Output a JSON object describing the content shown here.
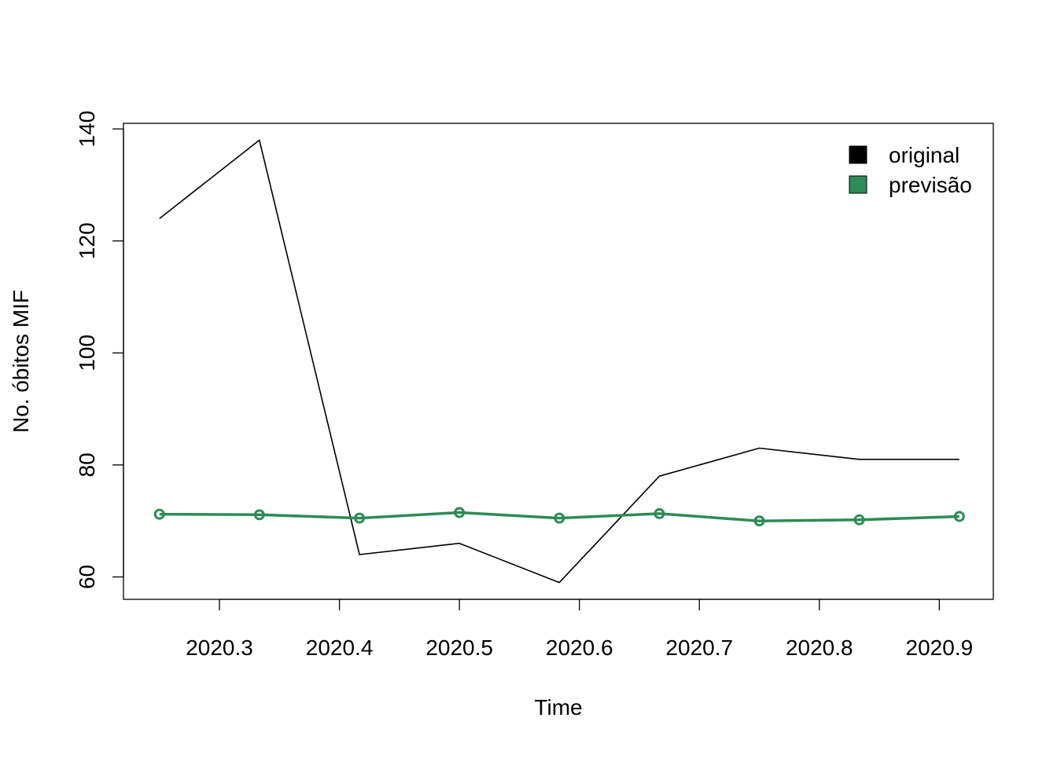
{
  "chart_data": {
    "type": "line",
    "title": "",
    "xlabel": "Time",
    "ylabel": "No. óbitos MIF",
    "xlim": [
      2020.22,
      2020.945
    ],
    "ylim": [
      56,
      141
    ],
    "x_ticks": [
      2020.3,
      2020.4,
      2020.5,
      2020.6,
      2020.7,
      2020.8,
      2020.9
    ],
    "x_tick_labels": [
      "2020.3",
      "2020.4",
      "2020.5",
      "2020.6",
      "2020.7",
      "2020.8",
      "2020.9"
    ],
    "y_ticks": [
      60,
      80,
      100,
      120,
      140
    ],
    "y_tick_labels": [
      "60",
      "80",
      "100",
      "120",
      "140"
    ],
    "grid": false,
    "legend_position": "top-right",
    "series": [
      {
        "name": "original",
        "color": "#000000",
        "style": "line",
        "x": [
          2020.25,
          2020.3333,
          2020.4167,
          2020.5,
          2020.5833,
          2020.6667,
          2020.75,
          2020.8333,
          2020.9167
        ],
        "values": [
          124,
          138,
          64,
          66,
          59,
          78,
          83,
          81,
          81
        ]
      },
      {
        "name": "previsão",
        "color": "#2E8B57",
        "style": "line+points",
        "x": [
          2020.25,
          2020.3333,
          2020.4167,
          2020.5,
          2020.5833,
          2020.6667,
          2020.75,
          2020.8333,
          2020.9167
        ],
        "values": [
          71.2,
          71.1,
          70.5,
          71.5,
          70.5,
          71.3,
          70.0,
          70.2,
          70.8
        ]
      }
    ]
  }
}
